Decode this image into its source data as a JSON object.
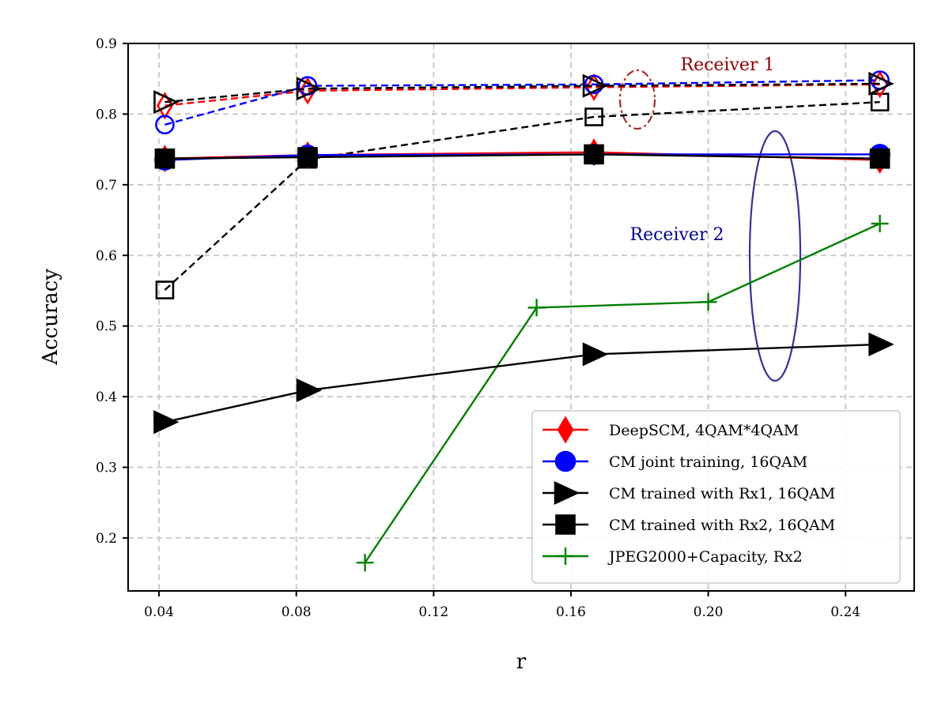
{
  "chart_data": {
    "type": "line",
    "title": "",
    "xlabel": "r",
    "ylabel": "Accuracy",
    "xlim": [
      0.031,
      0.26
    ],
    "ylim": [
      0.125,
      0.9
    ],
    "xticks": [
      {
        "value": 0.04,
        "label": "0.04"
      },
      {
        "value": 0.08,
        "label": "0.08"
      },
      {
        "value": 0.12,
        "label": "0.12"
      },
      {
        "value": 0.16,
        "label": "0.16"
      },
      {
        "value": 0.2,
        "label": "0.20"
      },
      {
        "value": 0.24,
        "label": "0.24"
      }
    ],
    "yticks": [
      {
        "value": 0.2,
        "label": "0.2"
      },
      {
        "value": 0.3,
        "label": "0.3"
      },
      {
        "value": 0.4,
        "label": "0.4"
      },
      {
        "value": 0.5,
        "label": "0.5"
      },
      {
        "value": 0.6,
        "label": "0.6"
      },
      {
        "value": 0.7,
        "label": "0.7"
      },
      {
        "value": 0.8,
        "label": "0.8"
      },
      {
        "value": 0.9,
        "label": "0.9"
      }
    ],
    "grid": true,
    "legend_position": "bottom-right",
    "series": [
      {
        "id": "deepscm-rx1",
        "name": "DeepSCM, 4QAM*4QAM",
        "group": "Receiver 1",
        "color": "#ff0000",
        "marker": "diamond",
        "filled": false,
        "dashed": true,
        "x": [
          0.0417,
          0.0833,
          0.1667,
          0.25
        ],
        "y": [
          0.812,
          0.833,
          0.838,
          0.842
        ],
        "legend": false
      },
      {
        "id": "cmjoint-rx1",
        "name": "CM joint training, 16QAM",
        "group": "Receiver 1",
        "color": "#0000ff",
        "marker": "circle",
        "filled": false,
        "dashed": true,
        "x": [
          0.0417,
          0.0833,
          0.1667,
          0.25
        ],
        "y": [
          0.785,
          0.84,
          0.842,
          0.848
        ],
        "legend": false
      },
      {
        "id": "cmrx1-rx1",
        "name": "CM trained with Rx1, 16QAM",
        "group": "Receiver 1",
        "color": "#000000",
        "marker": "triangle",
        "filled": false,
        "dashed": true,
        "x": [
          0.0417,
          0.0833,
          0.1667,
          0.25
        ],
        "y": [
          0.817,
          0.836,
          0.84,
          0.843
        ],
        "legend": false
      },
      {
        "id": "cmrx2-rx1",
        "name": "CM trained with Rx2, 16QAM",
        "group": "Receiver 1",
        "color": "#000000",
        "marker": "square",
        "filled": false,
        "dashed": true,
        "x": [
          0.0417,
          0.0833,
          0.1667,
          0.25
        ],
        "y": [
          0.551,
          0.736,
          0.796,
          0.817
        ],
        "legend": false
      },
      {
        "id": "deepscm-rx2",
        "name": "DeepSCM, 4QAM*4QAM",
        "group": "Receiver 2",
        "color": "#ff0000",
        "marker": "diamond",
        "filled": true,
        "dashed": false,
        "x": [
          0.0417,
          0.0833,
          0.1667,
          0.25
        ],
        "y": [
          0.737,
          0.742,
          0.746,
          0.735
        ],
        "legend": true
      },
      {
        "id": "cmjoint-rx2",
        "name": "CM joint training, 16QAM",
        "group": "Receiver 2",
        "color": "#0000ff",
        "marker": "circle",
        "filled": true,
        "dashed": false,
        "x": [
          0.0417,
          0.0833,
          0.1667,
          0.25
        ],
        "y": [
          0.735,
          0.742,
          0.743,
          0.743
        ],
        "legend": true
      },
      {
        "id": "cmrx1-rx2",
        "name": "CM trained with Rx1, 16QAM",
        "group": "Receiver 2",
        "color": "#000000",
        "marker": "triangle",
        "filled": true,
        "dashed": false,
        "x": [
          0.0417,
          0.0833,
          0.1667,
          0.25
        ],
        "y": [
          0.364,
          0.409,
          0.46,
          0.474
        ],
        "legend": true
      },
      {
        "id": "cmrx2-rx2",
        "name": "CM trained with Rx2, 16QAM",
        "group": "Receiver 2",
        "color": "#000000",
        "marker": "square",
        "filled": true,
        "dashed": false,
        "x": [
          0.0417,
          0.0833,
          0.1667,
          0.25
        ],
        "y": [
          0.737,
          0.739,
          0.743,
          0.737
        ],
        "legend": true
      },
      {
        "id": "jpeg2000",
        "name": "JPEG2000+Capacity, Rx2",
        "group": "Receiver 2",
        "color": "#008000",
        "marker": "plus",
        "filled": false,
        "dashed": false,
        "x": [
          0.1,
          0.15,
          0.2,
          0.25
        ],
        "y": [
          0.165,
          0.526,
          0.534,
          0.645
        ],
        "legend": true
      }
    ],
    "annotations": [
      {
        "id": "receiver1",
        "text": "Receiver 1",
        "color": "#8b0000",
        "ellipse_color": "#a52a2a",
        "ellipse_dashed": true
      },
      {
        "id": "receiver2",
        "text": "Receiver 2",
        "color": "#00008b",
        "ellipse_color": "#333399",
        "ellipse_dashed": false
      }
    ]
  }
}
